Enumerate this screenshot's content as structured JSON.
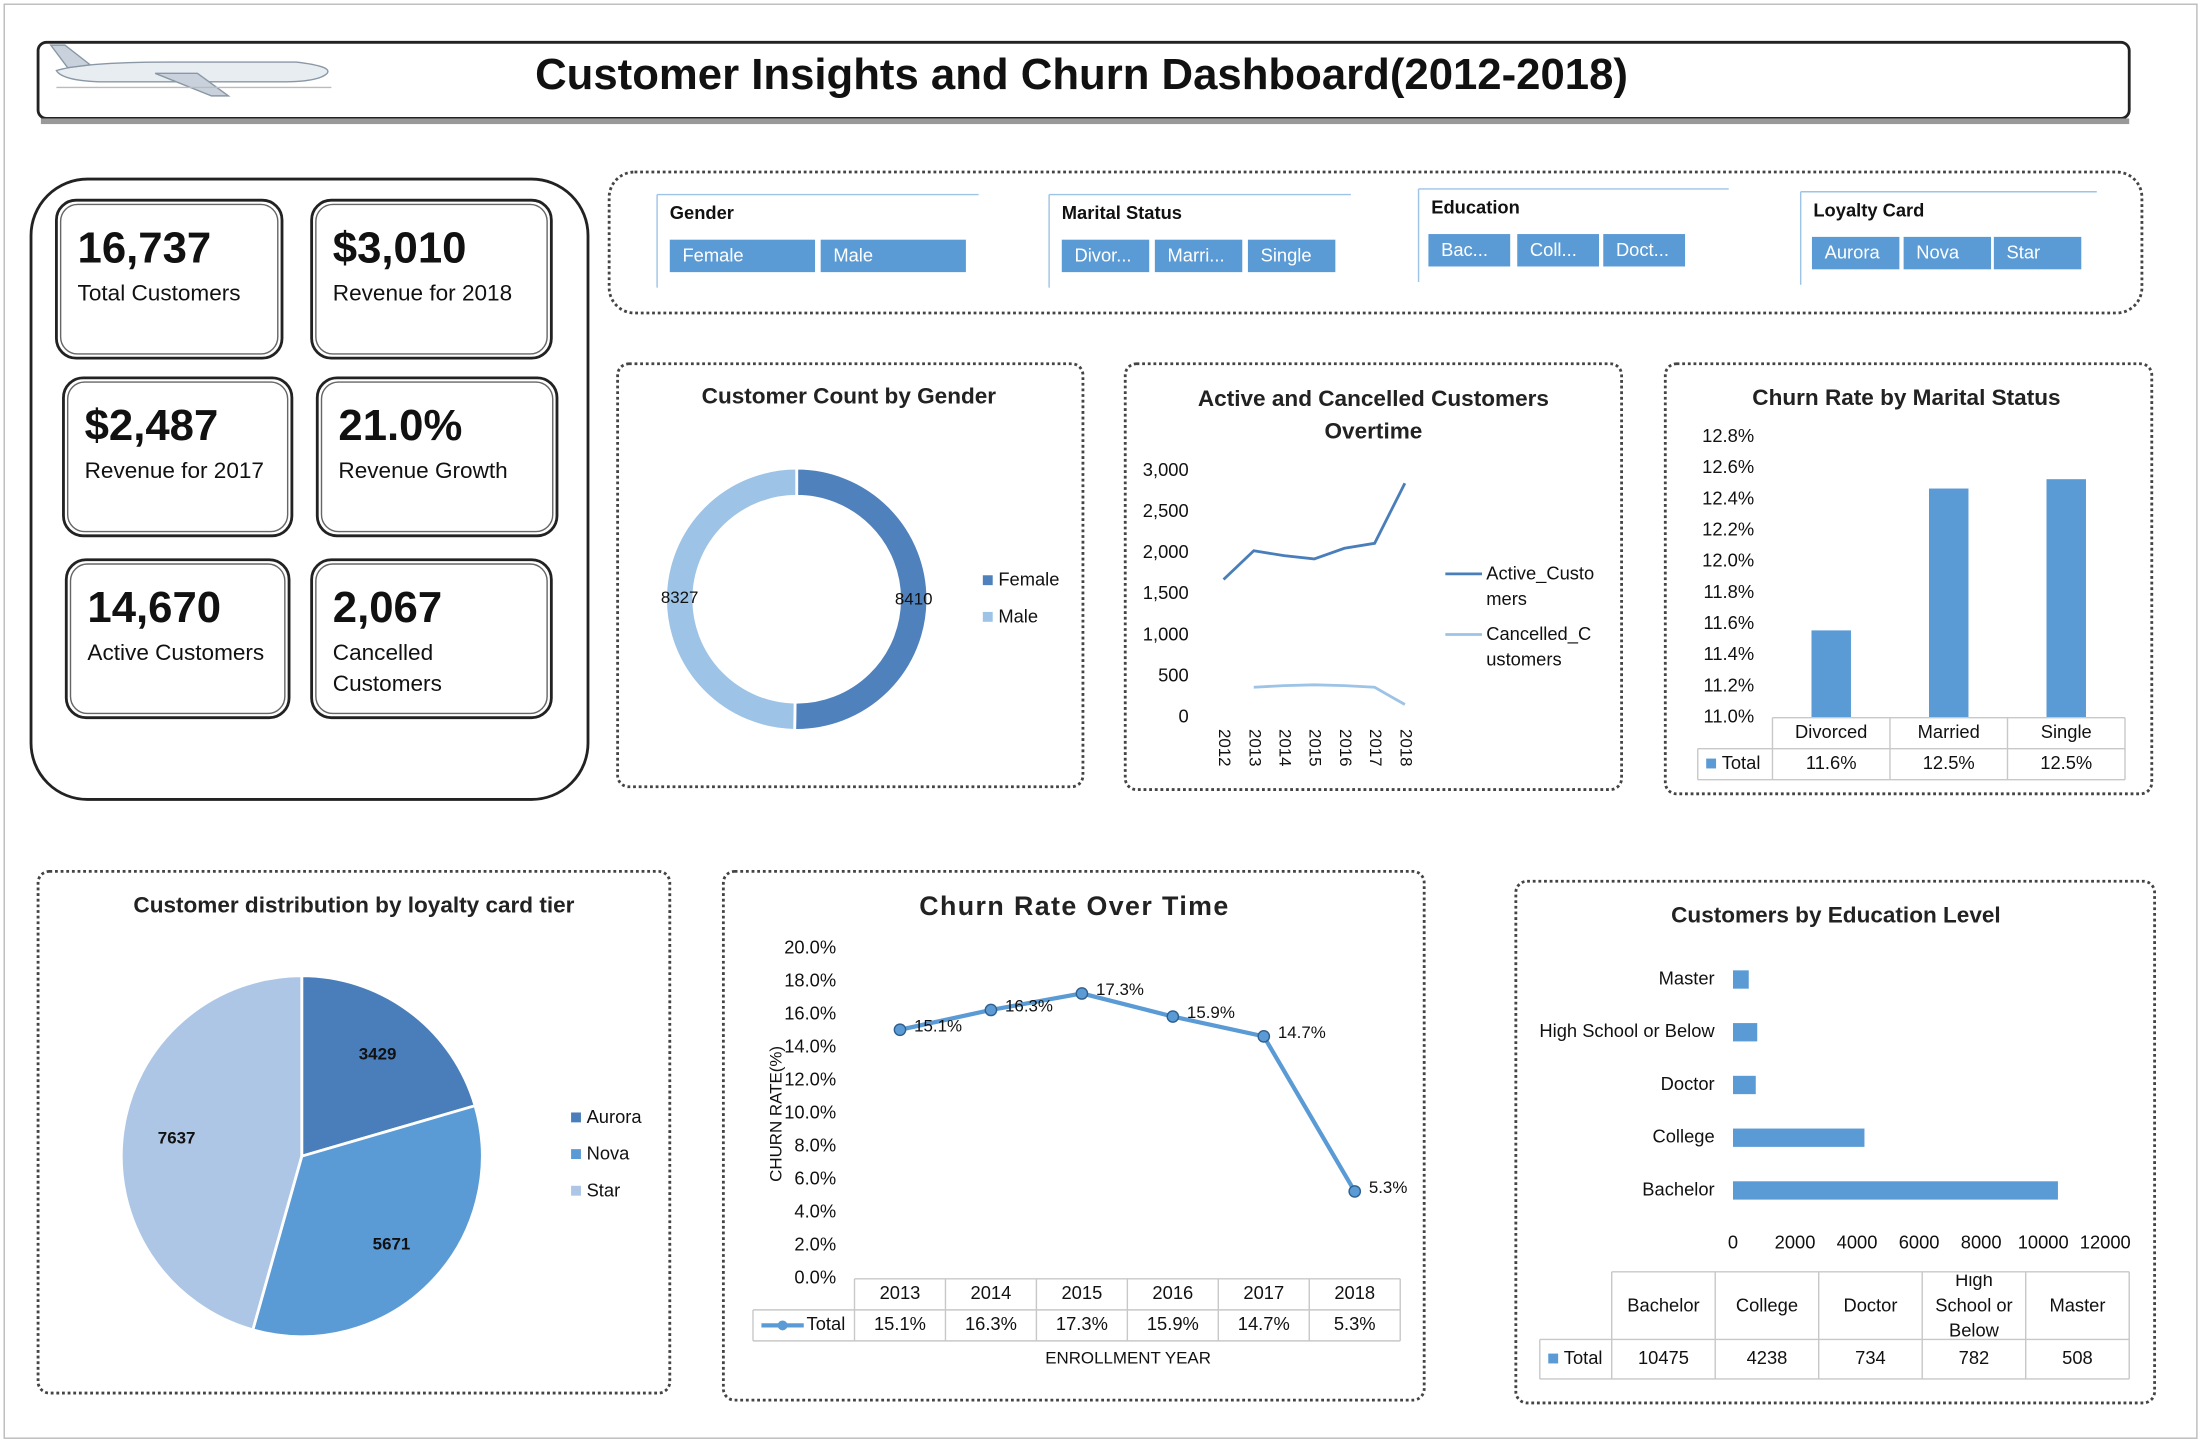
{
  "title": "Customer Insights and Churn Dashboard(2012-2018)",
  "kpis": [
    {
      "value": "16,737",
      "label": "Total Customers"
    },
    {
      "value": "$3,010",
      "label": "Revenue for 2018"
    },
    {
      "value": "$2,487",
      "label": "Revenue for 2017"
    },
    {
      "value": "21.0%",
      "label": "Revenue Growth"
    },
    {
      "value": "14,670",
      "label": "Active Customers"
    },
    {
      "value": "2,067",
      "label": "Cancelled Customers"
    }
  ],
  "slicers": [
    {
      "title": "Gender",
      "items": [
        "Female",
        "Male"
      ]
    },
    {
      "title": "Marital Status",
      "items": [
        "Divor...",
        "Marri...",
        "Single"
      ]
    },
    {
      "title": "Education",
      "items": [
        "Bac...",
        "Coll...",
        "Doct..."
      ]
    },
    {
      "title": "Loyalty Card",
      "items": [
        "Aurora",
        "Nova",
        "Star"
      ]
    }
  ],
  "chart_data": [
    {
      "type": "donut",
      "title": "Customer Count by Gender",
      "categories": [
        "Female",
        "Male"
      ],
      "values": [
        8410,
        8327
      ],
      "colors": [
        "#4f81bd",
        "#9dc3e6"
      ],
      "legend": "right"
    },
    {
      "type": "line",
      "title": "Active and Cancelled Customers Overtime",
      "categories": [
        "2012",
        "2013",
        "2014",
        "2015",
        "2016",
        "2017",
        "2018"
      ],
      "series": [
        {
          "name": "Active_Customers",
          "color": "#4a7ebb",
          "values": [
            1680,
            2030,
            1970,
            1930,
            2060,
            2120,
            2850
          ]
        },
        {
          "name": "Cancelled_Customers",
          "color": "#9dc3e6",
          "values": [
            null,
            370,
            390,
            400,
            390,
            370,
            160
          ]
        }
      ],
      "ylim": [
        0,
        3000
      ],
      "yticks": [
        0,
        500,
        {
          "value": 1000,
          "label": "1,000"
        },
        {
          "value": 1500,
          "label": "1,500"
        },
        {
          "value": 2000,
          "label": "2,000"
        },
        {
          "value": 2500,
          "label": "2,500"
        },
        {
          "value": 3000,
          "label": "3,000"
        }
      ],
      "legend": "right"
    },
    {
      "type": "bar",
      "title": "Churn Rate by Marital Status",
      "categories": [
        "Divorced",
        "Married",
        "Single"
      ],
      "series": [
        {
          "name": "Total",
          "color": "#5b9bd5",
          "values": [
            11.56,
            12.47,
            12.53
          ],
          "value_labels": [
            "11.6%",
            "12.5%",
            "12.5%"
          ]
        }
      ],
      "ylim": [
        11.0,
        12.8
      ],
      "yticks": [
        {
          "value": 11.0,
          "label": "11.0%"
        },
        {
          "value": 11.2,
          "label": "11.2%"
        },
        {
          "value": 11.4,
          "label": "11.4%"
        },
        {
          "value": 11.6,
          "label": "11.6%"
        },
        {
          "value": 11.8,
          "label": "11.8%"
        },
        {
          "value": 12.0,
          "label": "12.0%"
        },
        {
          "value": 12.2,
          "label": "12.2%"
        },
        {
          "value": 12.4,
          "label": "12.4%"
        },
        {
          "value": 12.6,
          "label": "12.6%"
        },
        {
          "value": 12.8,
          "label": "12.8%"
        }
      ],
      "data_table": true
    },
    {
      "type": "pie",
      "title": "Customer distribution by loyalty card tier",
      "categories": [
        "Aurora",
        "Nova",
        "Star"
      ],
      "values": [
        3429,
        5671,
        7637
      ],
      "colors": [
        "#4a7ebb",
        "#5b9bd5",
        "#adc6e5"
      ],
      "legend": "right"
    },
    {
      "type": "line",
      "title": "Churn Rate Over Time",
      "x_label": "ENROLLMENT YEAR",
      "y_label": "CHURN RATE(%)",
      "categories": [
        "2013",
        "2014",
        "2015",
        "2016",
        "2017",
        "2018"
      ],
      "series": [
        {
          "name": "Total",
          "color": "#5b9bd5",
          "values": [
            15.1,
            16.3,
            17.3,
            15.9,
            14.7,
            5.3
          ],
          "value_labels": [
            "15.1%",
            "16.3%",
            "17.3%",
            "15.9%",
            "14.7%",
            "5.3%"
          ]
        }
      ],
      "ylim": [
        0,
        20
      ],
      "yticks": [
        {
          "value": 0,
          "label": "0.0%"
        },
        {
          "value": 2,
          "label": "2.0%"
        },
        {
          "value": 4,
          "label": "4.0%"
        },
        {
          "value": 6,
          "label": "6.0%"
        },
        {
          "value": 8,
          "label": "8.0%"
        },
        {
          "value": 10,
          "label": "10.0%"
        },
        {
          "value": 12,
          "label": "12.0%"
        },
        {
          "value": 14,
          "label": "14.0%"
        },
        {
          "value": 16,
          "label": "16.0%"
        },
        {
          "value": 18,
          "label": "18.0%"
        },
        {
          "value": 20,
          "label": "20.0%"
        }
      ],
      "data_table": true
    },
    {
      "type": "hbar",
      "title": "Customers by Education Level",
      "categories": [
        "Bachelor",
        "College",
        "Doctor",
        "High School or Below",
        "Master"
      ],
      "series": [
        {
          "name": "Total",
          "color": "#5b9bd5",
          "values": [
            10475,
            4238,
            734,
            782,
            508
          ]
        }
      ],
      "xlim": [
        0,
        12000
      ],
      "xticks": [
        0,
        2000,
        4000,
        6000,
        8000,
        10000,
        12000
      ],
      "data_table": true
    }
  ]
}
